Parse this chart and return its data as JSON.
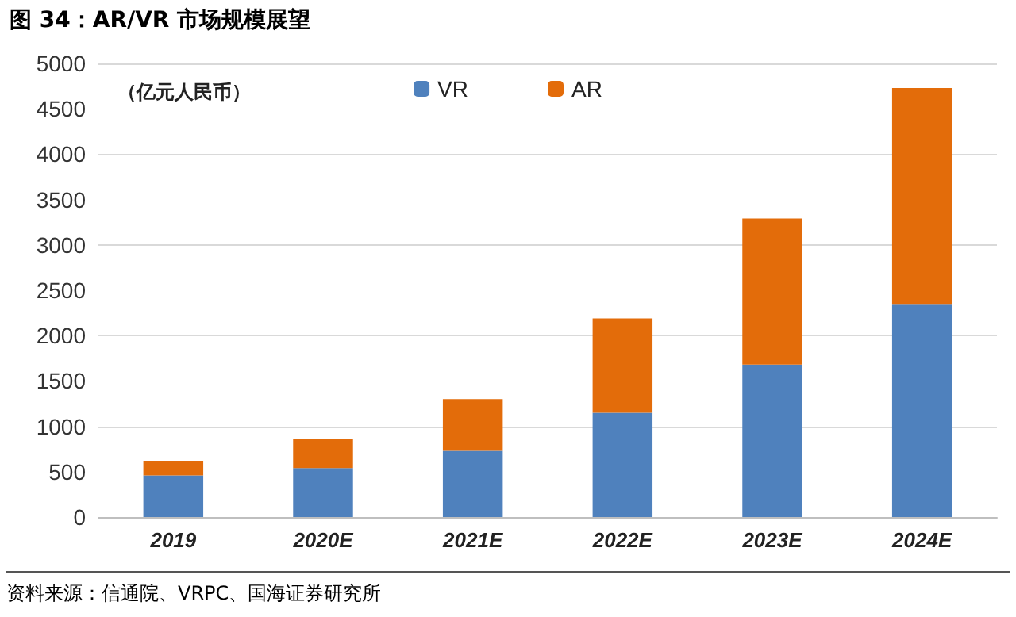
{
  "chart_data": {
    "type": "bar",
    "title": "图 34：AR/VR 市场规模展望",
    "ylabel": "（亿元人民币）",
    "categories": [
      "2019",
      "2020E",
      "2021E",
      "2022E",
      "2023E",
      "2024E"
    ],
    "series": [
      {
        "name": "VR",
        "color": "#4f81bd",
        "values": [
          460,
          540,
          730,
          1150,
          1680,
          2350
        ]
      },
      {
        "name": "AR",
        "color": "#e36c0a",
        "values": [
          160,
          320,
          570,
          1040,
          1610,
          2380
        ]
      }
    ],
    "stacked": true,
    "ylim": [
      0,
      5000
    ],
    "yticks": [
      0,
      500,
      1000,
      1500,
      2000,
      2500,
      3000,
      3500,
      4000,
      4500,
      5000
    ],
    "grid": "y",
    "legend": "top",
    "annotations": [
      "资料来源：信通院、VRPC、国海证券研究所"
    ]
  }
}
